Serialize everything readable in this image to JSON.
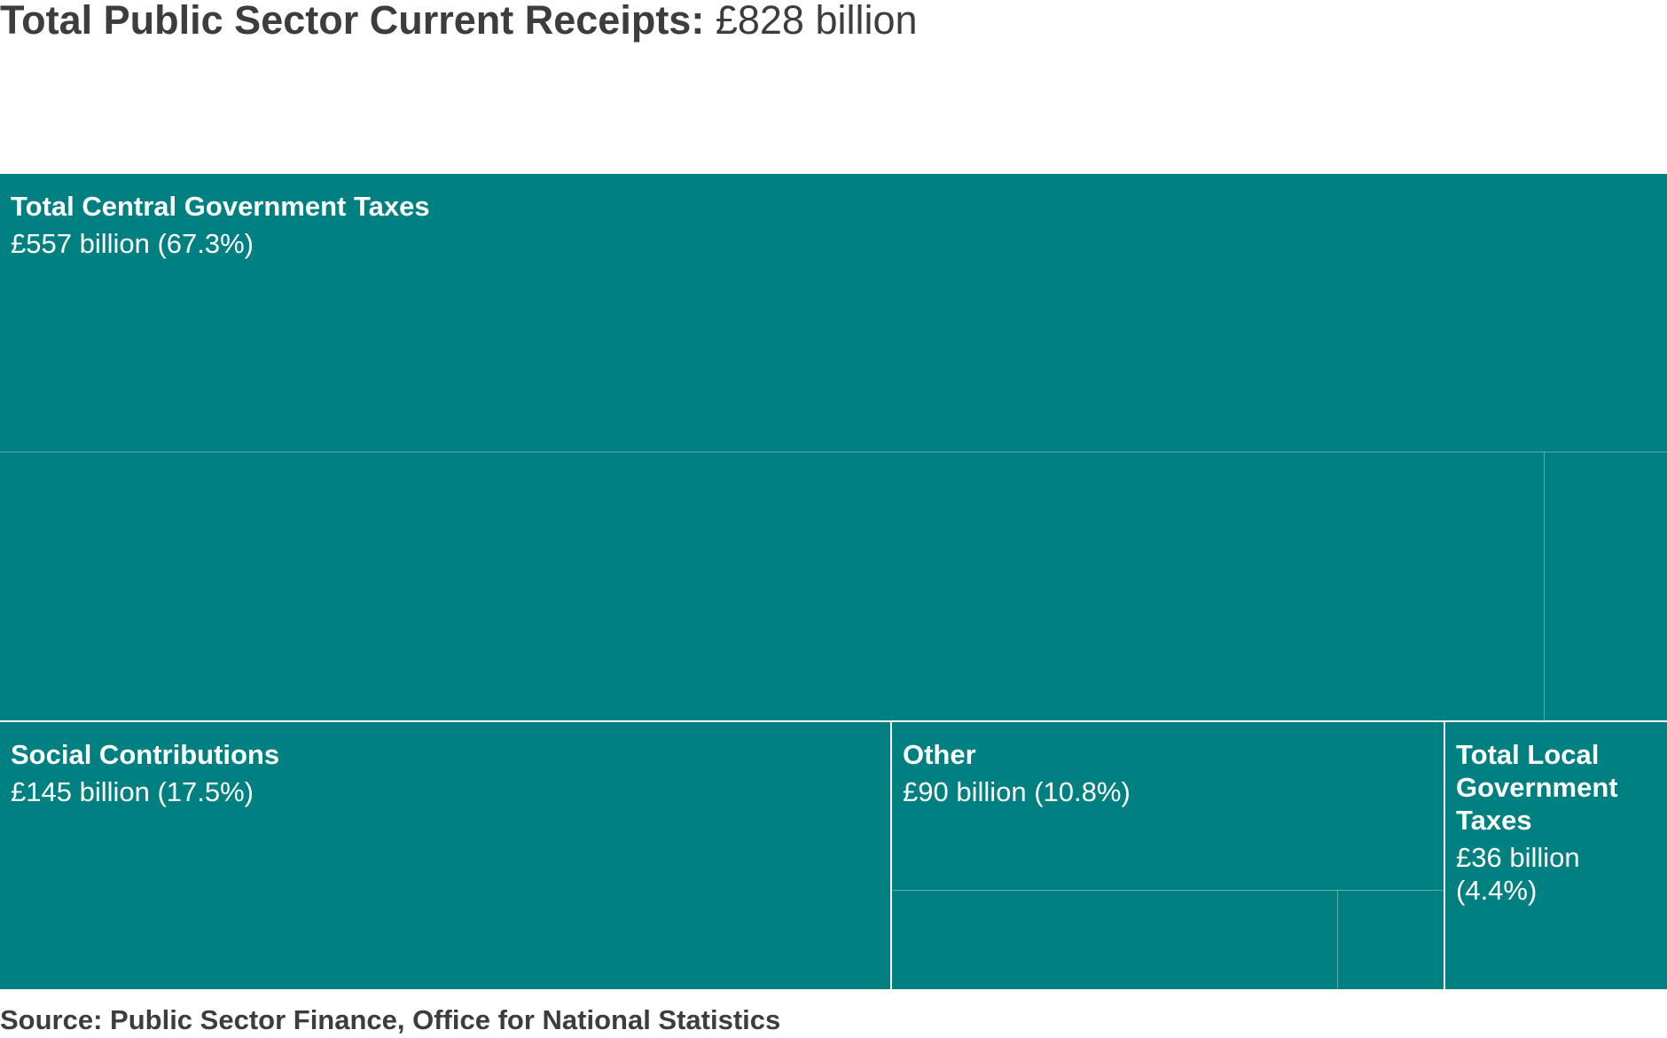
{
  "title": {
    "bold": "Total Public Sector Current Receipts:",
    "normal": "£828 billion"
  },
  "source": "Source: Public Sector Finance, Office for National Statistics",
  "colors": {
    "tile": "#008080",
    "text_dark": "#3d3d3d",
    "tile_text": "#ffffff"
  },
  "chart_data": {
    "type": "treemap",
    "title": "Total Public Sector Current Receipts: £828 billion",
    "total": 828,
    "unit": "£ billion",
    "items": [
      {
        "name": "Total Central Government Taxes",
        "label": "£557 billion (67.3%)",
        "value": 557,
        "percent": 67.3
      },
      {
        "name": "Social Contributions",
        "label": "£145 billion (17.5%)",
        "value": 145,
        "percent": 17.5
      },
      {
        "name": "Other",
        "label": "£90 billion (10.8%)",
        "value": 90,
        "percent": 10.8
      },
      {
        "name": "Total Local Government Taxes",
        "label": "£36 billion (4.4%)",
        "value": 36,
        "percent": 4.4
      }
    ]
  }
}
